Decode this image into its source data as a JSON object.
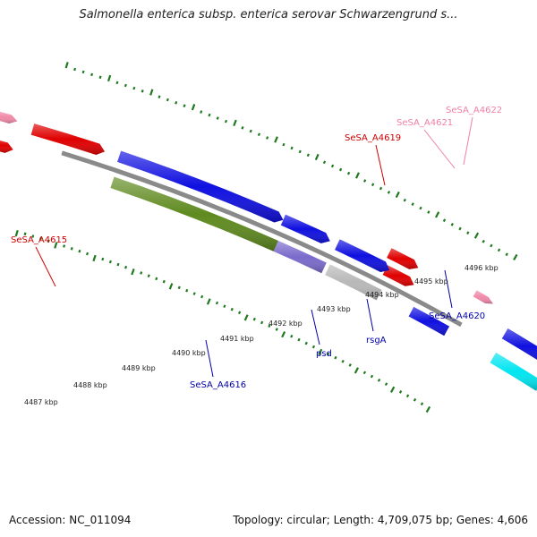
{
  "title": "Salmonella enterica subsp. enterica serovar Schwarzengrund s...",
  "footer": {
    "accession": "Accession: NC_011094",
    "summary": "Topology: circular; Length: 4,709,075 bp; Genes: 4,606"
  },
  "colors": {
    "backbone": "#8a8a8a",
    "tick": "#1f7a1f",
    "gene_red": "#e00000",
    "gene_pink": "#f08aa8",
    "gene_blue": "#1010e0",
    "gene_green": "#5f8a1f",
    "gene_purple": "#7a6acc",
    "gene_gray": "#b8b8b8",
    "gene_cyan": "#00e5f0",
    "label_red": "#cc0000",
    "label_pink": "#f080a8",
    "label_blue": "#0000aa"
  },
  "kbp_labels": [
    "4487 kbp",
    "4488 kbp",
    "4489 kbp",
    "4490 kbp",
    "4491 kbp",
    "4492 kbp",
    "4493 kbp",
    "4494 kbp",
    "4495 kbp",
    "4496 kbp"
  ],
  "genes": [
    {
      "id": "g-red-1",
      "color": "gene_red",
      "strand": "forward"
    },
    {
      "id": "g-red-2",
      "color": "gene_red",
      "strand": "forward"
    },
    {
      "id": "g-red-3",
      "color": "gene_red",
      "strand": "forward"
    },
    {
      "id": "g-red-4",
      "color": "gene_red",
      "strand": "forward"
    },
    {
      "id": "g-pink-1",
      "color": "gene_pink",
      "strand": "forward"
    },
    {
      "id": "g-pink-2",
      "color": "gene_pink",
      "strand": "forward"
    },
    {
      "id": "g-blue-1",
      "color": "gene_blue",
      "strand": "forward"
    },
    {
      "id": "g-blue-2",
      "color": "gene_blue",
      "strand": "forward"
    },
    {
      "id": "g-blue-3",
      "color": "gene_blue",
      "strand": "forward"
    },
    {
      "id": "g-blue-4",
      "color": "gene_blue",
      "strand": "reverse"
    },
    {
      "id": "g-blue-5",
      "color": "gene_blue",
      "strand": "forward"
    },
    {
      "id": "g-green",
      "color": "gene_green",
      "strand": "reverse"
    },
    {
      "id": "g-purple",
      "color": "gene_purple",
      "strand": "reverse"
    },
    {
      "id": "g-gray",
      "color": "gene_gray",
      "strand": "reverse"
    },
    {
      "id": "g-cyan",
      "color": "gene_cyan",
      "strand": "reverse"
    }
  ],
  "gene_labels": [
    {
      "text": "SeSA_A4615",
      "color": "label_red"
    },
    {
      "text": "SeSA_A4619",
      "color": "label_red"
    },
    {
      "text": "SeSA_A4621",
      "color": "label_pink"
    },
    {
      "text": "SeSA_A4622",
      "color": "label_pink"
    },
    {
      "text": "SeSA_A4616",
      "color": "label_blue"
    },
    {
      "text": "psd",
      "color": "label_blue"
    },
    {
      "text": "rsgA",
      "color": "label_blue"
    },
    {
      "text": "SeSA_A4620",
      "color": "label_blue"
    }
  ]
}
